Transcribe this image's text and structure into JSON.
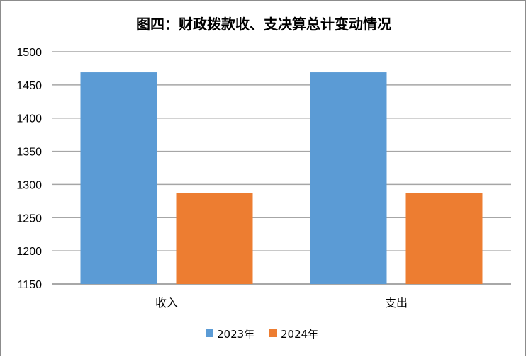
{
  "chart_data": {
    "type": "bar",
    "title": "图四：财政拨款收、支决算总计变动情况",
    "categories": [
      "收入",
      "支出"
    ],
    "series": [
      {
        "name": "2023年",
        "color": "#5B9BD5",
        "values": [
          1469,
          1469
        ]
      },
      {
        "name": "2024年",
        "color": "#ED7D31",
        "values": [
          1287,
          1287
        ]
      }
    ],
    "ylim": [
      1150,
      1500
    ],
    "yticks": [
      1150,
      1200,
      1250,
      1300,
      1350,
      1400,
      1450,
      1500
    ],
    "grid": true,
    "legend_position": "bottom"
  }
}
